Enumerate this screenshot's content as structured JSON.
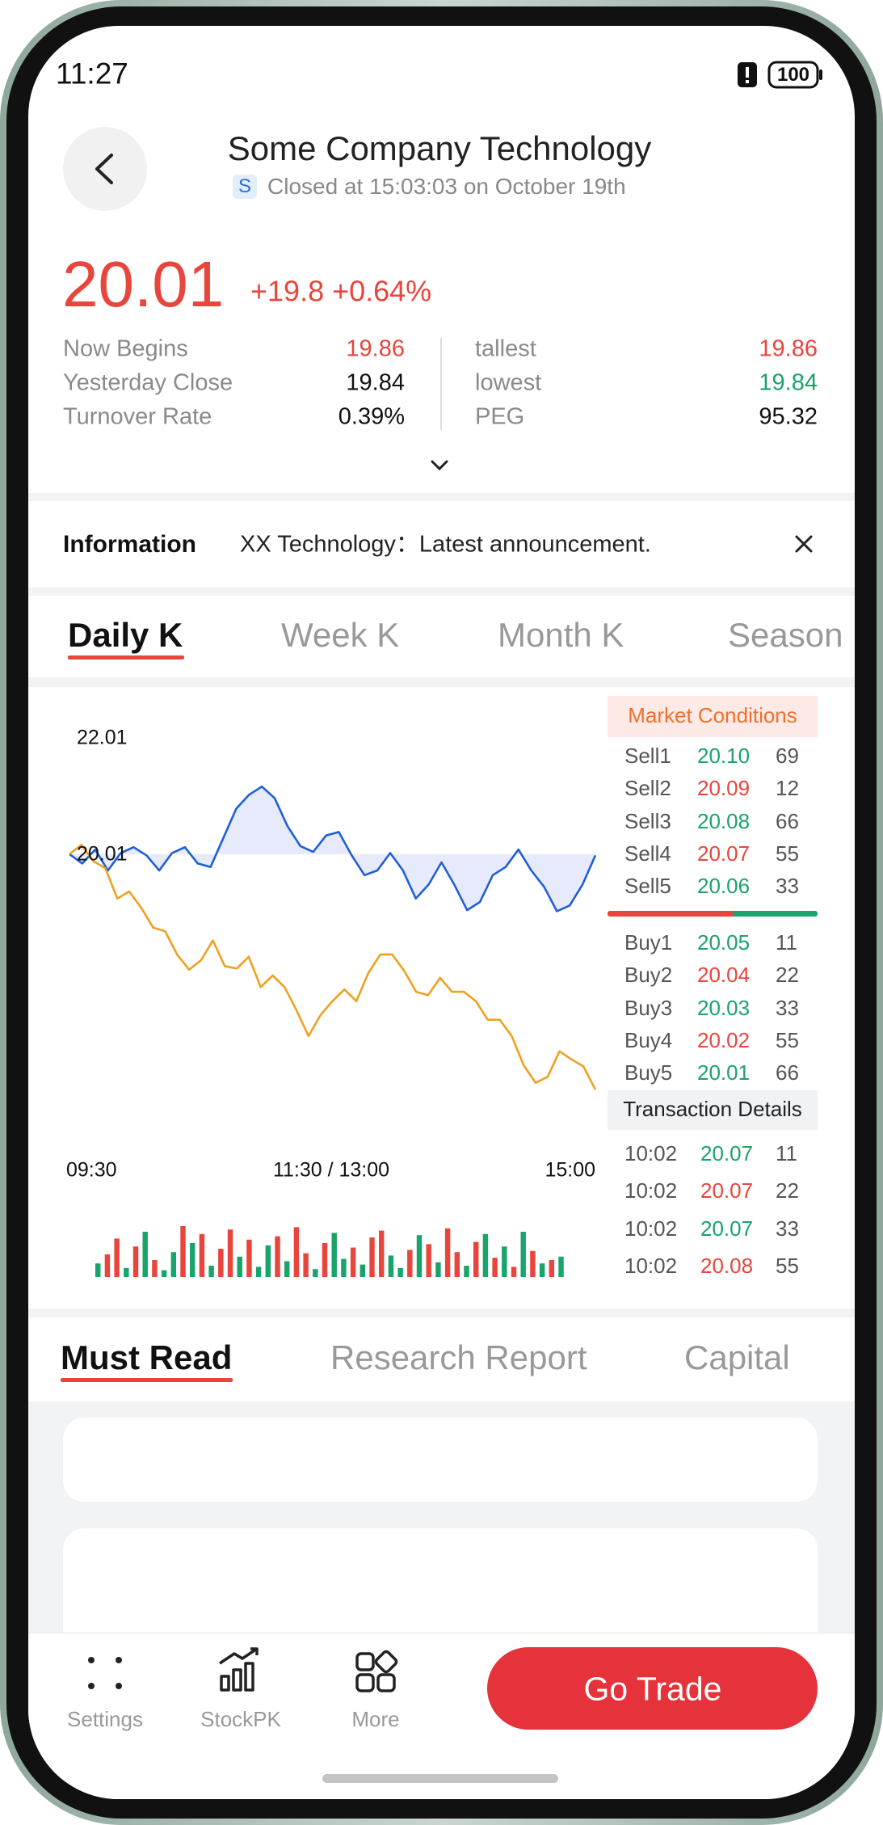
{
  "status_bar": {
    "time": "11:27",
    "battery": "100"
  },
  "header": {
    "title": "Some Company Technology",
    "badge": "S",
    "subtitle": "Closed at 15:03:03 on October 19th"
  },
  "quote": {
    "price": "20.01",
    "change": "+19.8 +0.64%",
    "color": "#e8453c",
    "stats": [
      {
        "label": "Now Begins",
        "value": "19.86",
        "color": "#e8453c"
      },
      {
        "label": "Yesterday Close",
        "value": "19.84",
        "color": "#111111"
      },
      {
        "label": "Turnover Rate",
        "value": "0.39%",
        "color": "#111111"
      },
      {
        "label": "tallest",
        "value": "19.86",
        "color": "#e8453c"
      },
      {
        "label": "lowest",
        "value": "19.84",
        "color": "#1aa36a"
      },
      {
        "label": "PEG",
        "value": "95.32",
        "color": "#111111"
      }
    ]
  },
  "information": {
    "label": "Information",
    "text": "XX Technology：Latest announcement."
  },
  "period_tabs": [
    "Daily K",
    "Week K",
    "Month K",
    "Season"
  ],
  "chart": {
    "type": "line",
    "ylim": [
      15.6,
      22.6
    ],
    "y_labels": [
      22.01,
      20.01
    ],
    "times": [
      "09:30",
      "11:30 / 13:00",
      "15:00"
    ],
    "fill": "#e7eafa",
    "series": [
      {
        "color": "#1f5fd6",
        "values": [
          20.01,
          19.85,
          20.09,
          19.73,
          20.03,
          20.13,
          19.99,
          19.73,
          20.03,
          20.13,
          19.85,
          19.79,
          20.29,
          20.79,
          21.03,
          21.17,
          20.97,
          20.49,
          20.15,
          20.05,
          20.33,
          20.39,
          19.99,
          19.65,
          19.73,
          20.03,
          19.73,
          19.25,
          19.49,
          19.87,
          19.49,
          19.05,
          19.19,
          19.65,
          19.79,
          20.09,
          19.73,
          19.45,
          19.03,
          19.13,
          19.49,
          19.99
        ]
      },
      {
        "color": "#f0a020",
        "values": [
          20.01,
          20.17,
          19.89,
          19.77,
          19.25,
          19.37,
          19.09,
          18.75,
          18.69,
          18.29,
          18.03,
          18.19,
          18.53,
          18.09,
          18.05,
          18.25,
          17.73,
          17.93,
          17.73,
          17.33,
          16.89,
          17.25,
          17.49,
          17.69,
          17.49,
          17.97,
          18.29,
          18.29,
          18.01,
          17.65,
          17.59,
          17.89,
          17.65,
          17.65,
          17.49,
          17.17,
          17.17,
          16.89,
          16.39,
          16.09,
          16.19,
          16.63,
          16.49,
          16.37,
          15.97
        ]
      }
    ],
    "volume": {
      "ylim": [
        0,
        50
      ],
      "values": [
        12,
        20,
        34,
        8,
        27,
        40,
        15,
        6,
        22,
        45,
        30,
        38,
        10,
        25,
        42,
        18,
        33,
        9,
        28,
        36,
        14,
        44,
        21,
        7,
        30,
        39,
        16,
        26,
        11,
        35,
        41,
        19,
        8,
        24,
        37,
        29,
        13,
        43,
        22,
        10,
        31,
        38,
        17,
        27,
        9,
        40,
        23,
        12,
        15,
        18
      ],
      "colors": [
        "#1aa36a",
        "#e8453c",
        "#e8453c",
        "#1aa36a",
        "#e8453c",
        "#1aa36a",
        "#e8453c",
        "#1aa36a",
        "#1aa36a",
        "#e8453c",
        "#1aa36a",
        "#e8453c",
        "#1aa36a",
        "#e8453c",
        "#e8453c",
        "#1aa36a",
        "#e8453c",
        "#1aa36a",
        "#1aa36a",
        "#e8453c",
        "#1aa36a",
        "#e8453c",
        "#e8453c",
        "#1aa36a",
        "#e8453c",
        "#1aa36a",
        "#1aa36a",
        "#e8453c",
        "#1aa36a",
        "#e8453c",
        "#e8453c",
        "#1aa36a",
        "#1aa36a",
        "#e8453c",
        "#1aa36a",
        "#e8453c",
        "#1aa36a",
        "#e8453c",
        "#e8453c",
        "#1aa36a",
        "#e8453c",
        "#1aa36a",
        "#e8453c",
        "#1aa36a",
        "#e8453c",
        "#1aa36a",
        "#e8453c",
        "#1aa36a",
        "#e8453c",
        "#1aa36a"
      ]
    }
  },
  "market": {
    "title": "Market Conditions",
    "sell": [
      {
        "label": "Sell1",
        "price": "20.10",
        "qty": "69",
        "color": "#1aa36a"
      },
      {
        "label": "Sell2",
        "price": "20.09",
        "qty": "12",
        "color": "#e8453c"
      },
      {
        "label": "Sell3",
        "price": "20.08",
        "qty": "66",
        "color": "#1aa36a"
      },
      {
        "label": "Sell4",
        "price": "20.07",
        "qty": "55",
        "color": "#e8453c"
      },
      {
        "label": "Sell5",
        "price": "20.06",
        "qty": "33",
        "color": "#1aa36a"
      }
    ],
    "buy": [
      {
        "label": "Buy1",
        "price": "20.05",
        "qty": "11",
        "color": "#1aa36a"
      },
      {
        "label": "Buy2",
        "price": "20.04",
        "qty": "22",
        "color": "#e8453c"
      },
      {
        "label": "Buy3",
        "price": "20.03",
        "qty": "33",
        "color": "#1aa36a"
      },
      {
        "label": "Buy4",
        "price": "20.02",
        "qty": "55",
        "color": "#e8453c"
      },
      {
        "label": "Buy5",
        "price": "20.01",
        "qty": "66",
        "color": "#1aa36a"
      }
    ],
    "transactions_title": "Transaction Details",
    "transactions": [
      {
        "time": "10:02",
        "price": "20.07",
        "qty": "11",
        "color": "#1aa36a"
      },
      {
        "time": "10:02",
        "price": "20.07",
        "qty": "22",
        "color": "#e8453c"
      },
      {
        "time": "10:02",
        "price": "20.07",
        "qty": "33",
        "color": "#1aa36a"
      },
      {
        "time": "10:02",
        "price": "20.08",
        "qty": "55",
        "color": "#e8453c"
      }
    ]
  },
  "news_tabs": [
    "Must Read",
    "Research Report",
    "Capital"
  ],
  "bottom_nav": [
    {
      "label": "Settings"
    },
    {
      "label": "StockPK"
    },
    {
      "label": "More"
    }
  ],
  "trade_button": "Go Trade"
}
